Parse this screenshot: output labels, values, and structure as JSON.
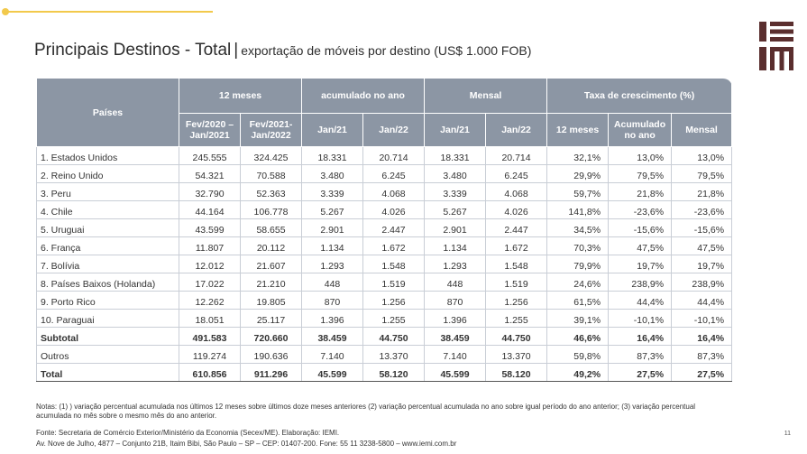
{
  "title": {
    "main": "Principais Destinos - Total",
    "separator": "|",
    "subtitle": "exportação de móveis por destino (US$ 1.000 FOB)"
  },
  "logo": {
    "text": "IEMI",
    "color": "#5a2e2e"
  },
  "colors": {
    "header_bg": "#8c96a4",
    "accent_line": "#f2c94c"
  },
  "table": {
    "header": {
      "paises": "Países",
      "group_12m": "12 meses",
      "group_acum": "acumulado no ano",
      "group_mensal": "Mensal",
      "group_taxa": "Taxa de crescimento (%)",
      "sub": [
        "Fev/2020 – Jan/2021",
        "Fev/2021- Jan/2022",
        "Jan/21",
        "Jan/22",
        "Jan/21",
        "Jan/22",
        "12 meses",
        "Acumulado no ano",
        "Mensal"
      ]
    },
    "rows": [
      [
        "1. Estados Unidos",
        "245.555",
        "324.425",
        "18.331",
        "20.714",
        "18.331",
        "20.714",
        "32,1%",
        "13,0%",
        "13,0%"
      ],
      [
        "2. Reino Unido",
        "54.321",
        "70.588",
        "3.480",
        "6.245",
        "3.480",
        "6.245",
        "29,9%",
        "79,5%",
        "79,5%"
      ],
      [
        "3. Peru",
        "32.790",
        "52.363",
        "3.339",
        "4.068",
        "3.339",
        "4.068",
        "59,7%",
        "21,8%",
        "21,8%"
      ],
      [
        "4. Chile",
        "44.164",
        "106.778",
        "5.267",
        "4.026",
        "5.267",
        "4.026",
        "141,8%",
        "-23,6%",
        "-23,6%"
      ],
      [
        "5. Uruguai",
        "43.599",
        "58.655",
        "2.901",
        "2.447",
        "2.901",
        "2.447",
        "34,5%",
        "-15,6%",
        "-15,6%"
      ],
      [
        "6. França",
        "11.807",
        "20.112",
        "1.134",
        "1.672",
        "1.134",
        "1.672",
        "70,3%",
        "47,5%",
        "47,5%"
      ],
      [
        "7. Bolívia",
        "12.012",
        "21.607",
        "1.293",
        "1.548",
        "1.293",
        "1.548",
        "79,9%",
        "19,7%",
        "19,7%"
      ],
      [
        "8. Países Baixos (Holanda)",
        "17.022",
        "21.210",
        "448",
        "1.519",
        "448",
        "1.519",
        "24,6%",
        "238,9%",
        "238,9%"
      ],
      [
        "9. Porto Rico",
        "12.262",
        "19.805",
        "870",
        "1.256",
        "870",
        "1.256",
        "61,5%",
        "44,4%",
        "44,4%"
      ],
      [
        "10. Paraguai",
        "18.051",
        "25.117",
        "1.396",
        "1.255",
        "1.396",
        "1.255",
        "39,1%",
        "-10,1%",
        "-10,1%"
      ]
    ],
    "subtotal": [
      "Subtotal",
      "491.583",
      "720.660",
      "38.459",
      "44.750",
      "38.459",
      "44.750",
      "46,6%",
      "16,4%",
      "16,4%"
    ],
    "outros": [
      "Outros",
      "119.274",
      "190.636",
      "7.140",
      "13.370",
      "7.140",
      "13.370",
      "59,8%",
      "87,3%",
      "87,3%"
    ],
    "total": [
      "Total",
      "610.856",
      "911.296",
      "45.599",
      "58.120",
      "45.599",
      "58.120",
      "49,2%",
      "27,5%",
      "27,5%"
    ]
  },
  "notes": "Notas: (1) ) variação percentual acumulada nos últimos 12 meses sobre últimos doze meses anteriores (2) variação percentual acumulada no ano sobre igual período do ano anterior; (3) variação percentual acumulada no mês sobre o mesmo mês do ano anterior.",
  "source": "Fonte: Secretaria de Comércio Exterior/Ministério da Economia (Secex/ME). Elaboração: IEMI.",
  "address": "Av. Nove de Julho, 4877 – Conjunto 21B, Itaim Bibi, São Paulo – SP – CEP: 01407-200. Fone: 55 11 3238-5800 – www.iemi.com.br",
  "page_number": "11"
}
